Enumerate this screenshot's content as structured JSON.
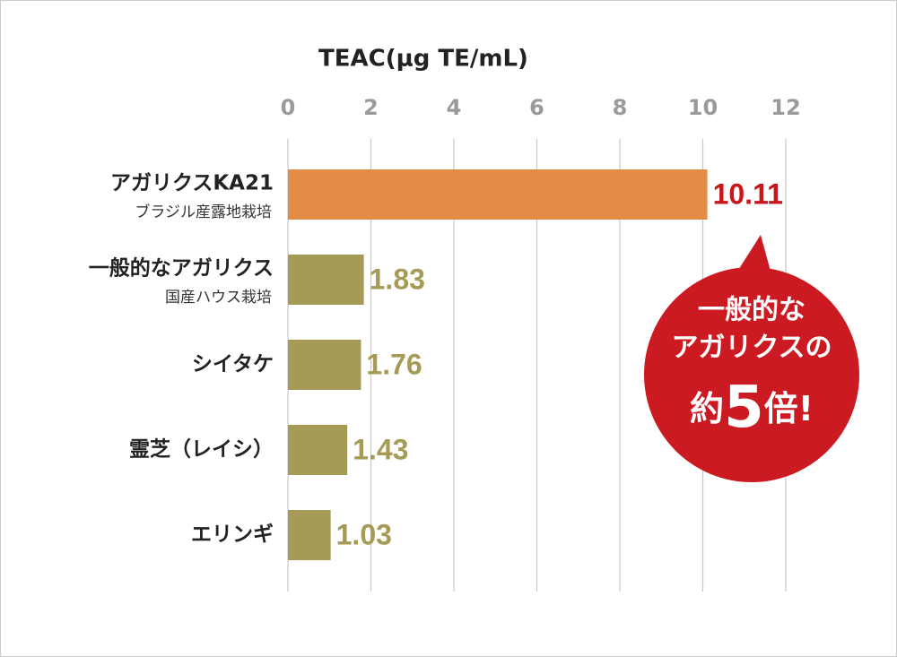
{
  "chart_data": {
    "type": "barh",
    "title": "TEAC(μg TE/mL)",
    "categories": [
      "アガリクスKA21",
      "一般的なアガリクス",
      "シイタケ",
      "霊芝（レイシ）",
      "エリンギ"
    ],
    "category_notes": [
      "ブラジル産露地栽培",
      "国産ハウス栽培",
      null,
      null,
      null
    ],
    "values": [
      10.11,
      1.83,
      1.76,
      1.43,
      1.03
    ],
    "colors": [
      "#e28c46",
      "#a59b56",
      "#a59b56",
      "#a59b56",
      "#a59b56"
    ],
    "label_colors": [
      "#c8161d",
      "#a59b56",
      "#a59b56",
      "#a59b56",
      "#a59b56"
    ],
    "xlim": [
      0,
      12
    ],
    "xticks": [
      0,
      2,
      4,
      6,
      8,
      10,
      12
    ],
    "grid": true,
    "annotation": {
      "lines": [
        "一般的な",
        "アガリクスの"
      ],
      "emphasis": [
        "約",
        "5",
        "倍!"
      ],
      "color": "#cc1a22"
    }
  }
}
